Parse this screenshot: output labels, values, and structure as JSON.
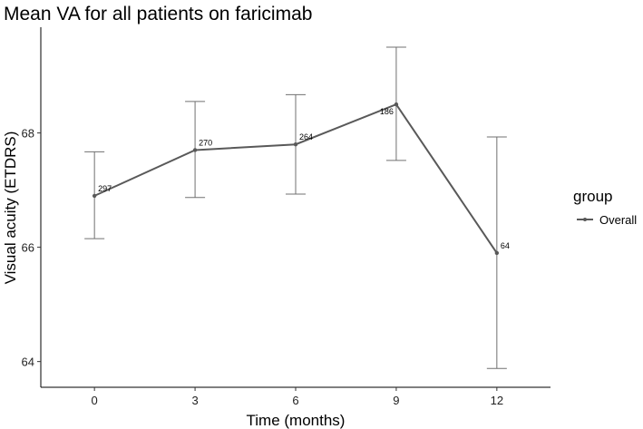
{
  "chart_data": {
    "type": "line",
    "title": "Mean VA for all patients on faricimab",
    "xlabel": "Time (months)",
    "ylabel": "Visual acuity (ETDRS)",
    "x": [
      0,
      3,
      6,
      9,
      12
    ],
    "xticks": [
      "0",
      "3",
      "6",
      "9",
      "12"
    ],
    "xlim": [
      -1.6,
      13.6
    ],
    "yticks": [
      "64",
      "66",
      "68"
    ],
    "ylim": [
      63.55,
      69.85
    ],
    "grid": false,
    "series": [
      {
        "name": "Overall",
        "values": [
          66.9,
          67.7,
          67.8,
          68.5,
          65.9
        ],
        "error_low": [
          66.15,
          66.87,
          66.93,
          67.52,
          63.88
        ],
        "error_high": [
          67.67,
          68.55,
          68.67,
          69.5,
          67.93
        ],
        "labels": [
          "297",
          "270",
          "264",
          "186",
          "64"
        ],
        "color": "#595959"
      }
    ],
    "legend": {
      "title": "group",
      "position": "right"
    }
  }
}
